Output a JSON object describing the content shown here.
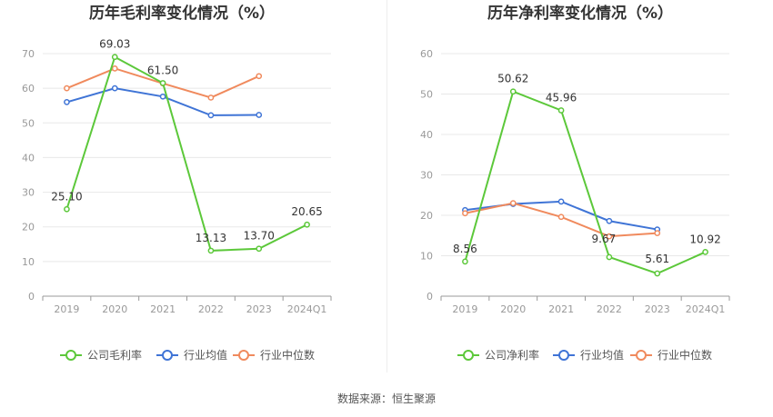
{
  "source_label": "数据来源：恒生聚源",
  "chart_data": [
    {
      "type": "line",
      "title": "历年毛利率变化情况（%）",
      "categories": [
        "2019",
        "2020",
        "2021",
        "2022",
        "2023",
        "2024Q1"
      ],
      "ylim": [
        0,
        70
      ],
      "yticks": [
        0,
        10,
        20,
        30,
        40,
        50,
        60,
        70
      ],
      "grid": true,
      "legend_position": "bottom",
      "series": [
        {
          "name": "公司毛利率",
          "color": "#5cc83a",
          "values": [
            25.1,
            69.03,
            61.5,
            13.13,
            13.7,
            20.65
          ],
          "labels": [
            "25.10",
            "69.03",
            "61.50",
            "13.13",
            "13.70",
            "20.65"
          ]
        },
        {
          "name": "行业均值",
          "color": "#3f74d6",
          "values": [
            56.0,
            60.0,
            57.6,
            52.2,
            52.3,
            null
          ]
        },
        {
          "name": "行业中位数",
          "color": "#f08a5d",
          "values": [
            60.0,
            65.7,
            61.4,
            57.3,
            63.5,
            null
          ]
        }
      ]
    },
    {
      "type": "line",
      "title": "历年净利率变化情况（%）",
      "categories": [
        "2019",
        "2020",
        "2021",
        "2022",
        "2023",
        "2024Q1"
      ],
      "ylim": [
        0,
        60
      ],
      "yticks": [
        0,
        10,
        20,
        30,
        40,
        50,
        60
      ],
      "grid": true,
      "legend_position": "bottom",
      "series": [
        {
          "name": "公司净利率",
          "color": "#5cc83a",
          "values": [
            8.56,
            50.62,
            45.96,
            9.67,
            5.61,
            10.92
          ],
          "labels": [
            "8.56",
            "50.62",
            "45.96",
            "9.67",
            "5.61",
            "10.92"
          ]
        },
        {
          "name": "行业均值",
          "color": "#3f74d6",
          "values": [
            21.3,
            22.8,
            23.4,
            18.6,
            16.5,
            null
          ]
        },
        {
          "name": "行业中位数",
          "color": "#f08a5d",
          "values": [
            20.5,
            23.0,
            19.6,
            14.8,
            15.6,
            null
          ]
        }
      ]
    }
  ]
}
